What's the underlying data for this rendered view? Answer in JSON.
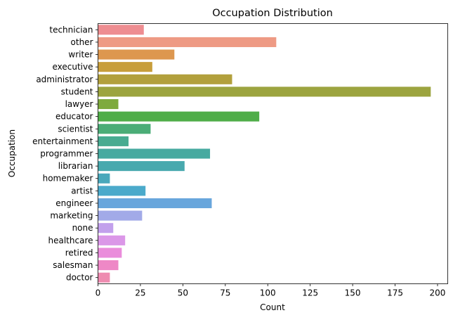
{
  "chart_data": {
    "type": "bar",
    "orientation": "horizontal",
    "title": "Occupation Distribution",
    "xlabel": "Count",
    "ylabel": "Occupation",
    "xlim": [
      0,
      206
    ],
    "xticks": [
      0,
      25,
      50,
      75,
      100,
      125,
      150,
      175,
      200
    ],
    "grid": false,
    "categories": [
      "technician",
      "other",
      "writer",
      "executive",
      "administrator",
      "student",
      "lawyer",
      "educator",
      "scientist",
      "entertainment",
      "programmer",
      "librarian",
      "homemaker",
      "artist",
      "engineer",
      "marketing",
      "none",
      "healthcare",
      "retired",
      "salesman",
      "doctor"
    ],
    "values": [
      27,
      105,
      45,
      32,
      79,
      196,
      12,
      95,
      31,
      18,
      66,
      51,
      7,
      28,
      67,
      26,
      9,
      16,
      14,
      12,
      7
    ],
    "colors": [
      "#ee8d91",
      "#ee9a84",
      "#dd974f",
      "#c89e3b",
      "#b2a03c",
      "#9ca43f",
      "#7eaa3d",
      "#4fad48",
      "#4bad77",
      "#48ab91",
      "#47aaa0",
      "#48a9ae",
      "#49a8bb",
      "#4baacb",
      "#68a6dc",
      "#a2aae8",
      "#c2a0ec",
      "#db97e8",
      "#ea8cdb",
      "#ee88c6",
      "#ee8bb0"
    ]
  }
}
